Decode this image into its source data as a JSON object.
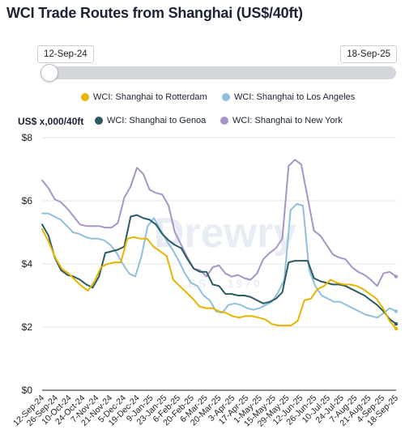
{
  "page": {
    "title": "WCI Trade Routes from Shanghai (US$/40ft)"
  },
  "slider": {
    "start_label": "12-Sep-24",
    "end_label": "18-Sep-25"
  },
  "watermark": {
    "text": "Drewry",
    "subtext": "EST. 1970"
  },
  "colors": {
    "rotterdam": "#e8b400",
    "los_angeles": "#8fbfdc",
    "genoa": "#2b5b62",
    "new_york": "#a893c7",
    "grid": "#e3e5e8",
    "axis": "#222222"
  },
  "chart_data": {
    "type": "line",
    "ylabel": "US$ x,000/40ft",
    "ylim": [
      0,
      8
    ],
    "yticks": [
      "$0",
      "$2",
      "$4",
      "$6",
      "$8"
    ],
    "grid": "horizontal",
    "legend_position": "top",
    "x_tick_labels": [
      "12-Sep-24",
      "26-Sep-24",
      "10-Oct-24",
      "24-Oct-24",
      "7-Nov-24",
      "21-Nov-24",
      "5-Dec-24",
      "19-Dec-24",
      "9-Jan-25",
      "23-Jan-25",
      "6-Feb-25",
      "20-Feb-25",
      "6-Mar-25",
      "20-Mar-25",
      "3-Apr-25",
      "17-Apr-25",
      "1-May-25",
      "15-May-25",
      "29-May-25",
      "12-Jun-25",
      "26-Jun-25",
      "10-Jul-25",
      "24-Jul-25",
      "7-Aug-25",
      "21-Aug-25",
      "4-Sep-25",
      "18-Sep-25"
    ],
    "series": [
      {
        "name": "WCI: Shanghai to Rotterdam",
        "color_key": "rotterdam",
        "values": [
          5.1,
          4.7,
          4.2,
          3.85,
          3.7,
          3.5,
          3.3,
          3.15,
          3.45,
          3.9,
          4.0,
          4.05,
          4.05,
          4.8,
          4.85,
          4.8,
          4.8,
          4.55,
          4.4,
          4.25,
          3.5,
          3.3,
          3.1,
          2.9,
          2.65,
          2.6,
          2.6,
          2.5,
          2.45,
          2.35,
          2.3,
          2.35,
          2.35,
          2.3,
          2.25,
          2.1,
          2.05,
          2.05,
          2.05,
          2.2,
          2.85,
          2.9,
          3.2,
          3.3,
          3.5,
          3.4,
          3.35,
          3.35,
          3.3,
          3.2,
          3.05,
          2.9,
          2.6,
          2.2,
          1.95
        ]
      },
      {
        "name": "WCI: Shanghai to Los Angeles",
        "color_key": "los_angeles",
        "values": [
          5.6,
          5.6,
          5.5,
          5.4,
          5.2,
          5.0,
          4.95,
          4.85,
          4.8,
          4.8,
          4.75,
          4.6,
          4.35,
          4.0,
          3.7,
          3.6,
          4.25,
          5.2,
          5.45,
          5.1,
          4.75,
          4.45,
          4.1,
          3.7,
          3.4,
          3.3,
          3.0,
          2.85,
          2.5,
          2.45,
          2.7,
          2.75,
          2.7,
          2.6,
          2.55,
          2.6,
          2.7,
          2.8,
          3.1,
          3.5,
          5.7,
          5.9,
          5.85,
          3.8,
          3.3,
          3.0,
          2.9,
          2.8,
          2.8,
          2.7,
          2.6,
          2.5,
          2.4,
          2.35,
          2.3,
          2.45,
          2.6,
          2.5
        ]
      },
      {
        "name": "WCI: Shanghai to Genoa",
        "color_key": "genoa",
        "values": [
          5.25,
          4.9,
          4.2,
          3.8,
          3.65,
          3.6,
          3.5,
          3.35,
          3.25,
          3.6,
          4.35,
          4.4,
          4.45,
          4.55,
          5.5,
          5.55,
          5.45,
          5.4,
          5.25,
          4.95,
          4.75,
          4.6,
          4.5,
          4.15,
          3.85,
          3.75,
          3.75,
          3.35,
          3.3,
          3.05,
          3.05,
          3.0,
          3.0,
          2.95,
          2.85,
          2.75,
          2.8,
          2.9,
          3.1,
          4.05,
          4.1,
          4.1,
          4.1,
          3.55,
          3.45,
          3.4,
          3.35,
          3.35,
          3.3,
          3.2,
          3.1,
          3.0,
          2.85,
          2.7,
          2.5,
          2.25,
          2.1
        ]
      },
      {
        "name": "WCI: Shanghai to New York",
        "color_key": "new_york",
        "values": [
          6.65,
          6.4,
          6.05,
          5.95,
          5.75,
          5.5,
          5.25,
          5.2,
          5.2,
          5.2,
          5.15,
          5.15,
          5.3,
          6.1,
          6.45,
          7.05,
          6.85,
          6.35,
          6.25,
          6.2,
          5.85,
          5.0,
          4.6,
          4.2,
          3.85,
          3.8,
          3.6,
          3.9,
          3.95,
          3.7,
          3.6,
          3.65,
          3.55,
          3.5,
          3.7,
          4.15,
          4.35,
          4.5,
          4.8,
          7.1,
          7.3,
          7.15,
          6.1,
          5.05,
          4.9,
          4.6,
          4.3,
          4.2,
          4.15,
          3.9,
          3.75,
          3.65,
          3.5,
          3.3,
          3.7,
          3.75,
          3.6
        ]
      }
    ]
  }
}
